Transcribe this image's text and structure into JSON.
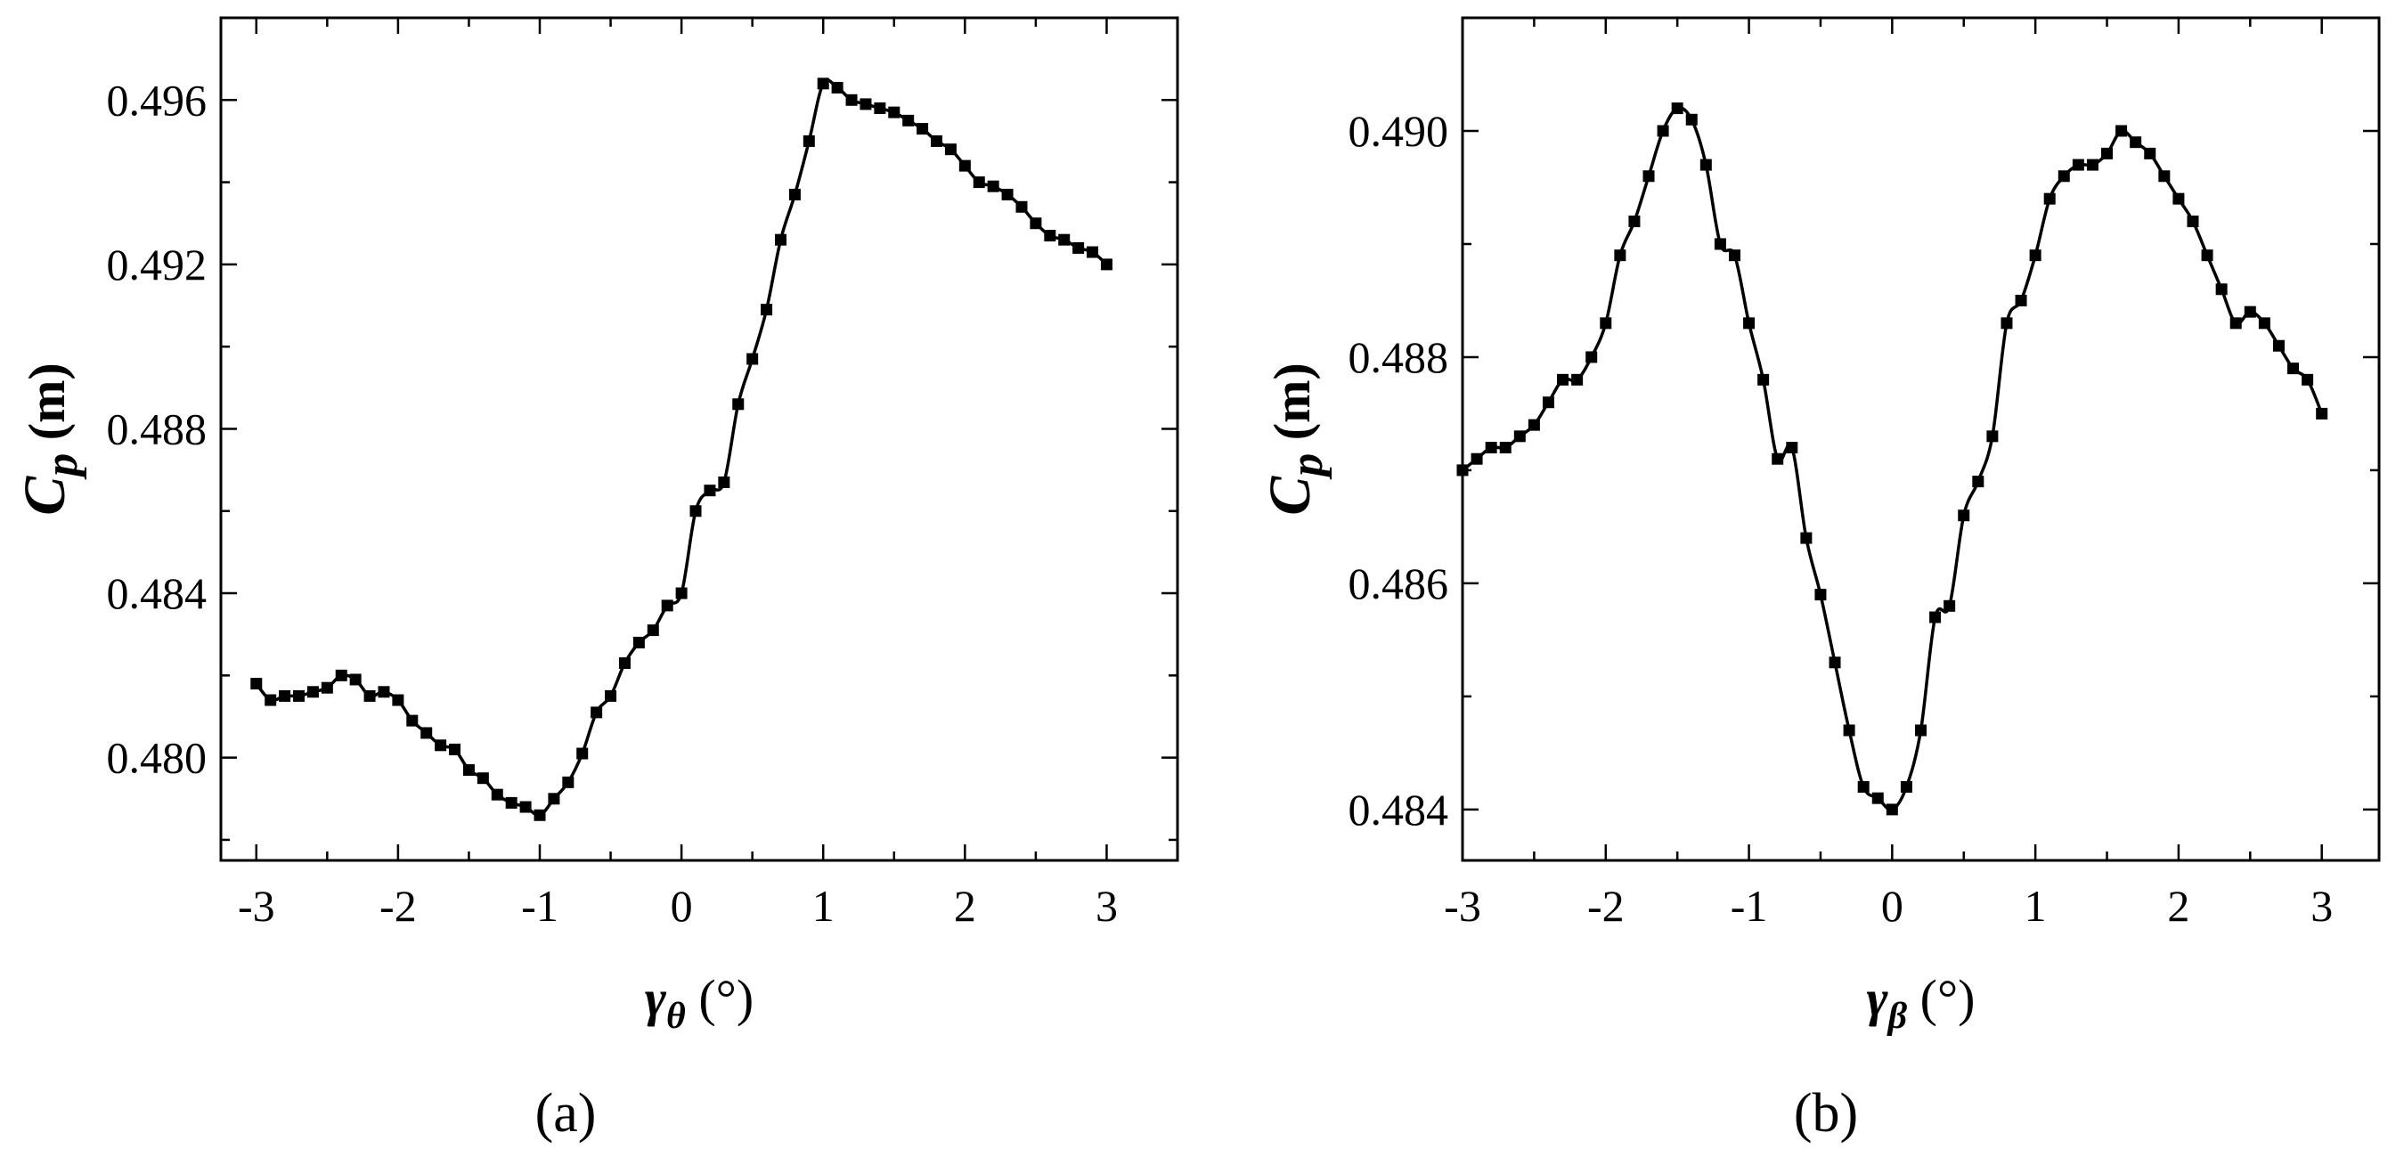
{
  "chart_data": [
    {
      "type": "line",
      "panel_label": "(a)",
      "xlabel": {
        "symbol": "γ",
        "subscript": "θ",
        "unit": " (°)"
      },
      "ylabel": {
        "symbol": "C",
        "subscript": "p",
        "unit": " (m)"
      },
      "xlim": [
        -3.25,
        3.5
      ],
      "ylim": [
        0.4775,
        0.498
      ],
      "xticks": [
        -3,
        -2,
        -1,
        0,
        1,
        2,
        3
      ],
      "xtick_labels": [
        "-3",
        "-2",
        "-1",
        "0",
        "1",
        "2",
        "3"
      ],
      "yticks": [
        0.48,
        0.484,
        0.488,
        0.492,
        0.496
      ],
      "ytick_labels": [
        "0.480",
        "0.484",
        "0.488",
        "0.492",
        "0.496"
      ],
      "grid": false,
      "marker": "square",
      "series": [
        {
          "x": [
            -3.0,
            -2.9,
            -2.8,
            -2.7,
            -2.6,
            -2.5,
            -2.4,
            -2.3,
            -2.2,
            -2.1,
            -2.0,
            -1.9,
            -1.8,
            -1.7,
            -1.6,
            -1.5,
            -1.4,
            -1.3,
            -1.2,
            -1.1,
            -1.0,
            -0.9,
            -0.8,
            -0.7,
            -0.6,
            -0.5,
            -0.4,
            -0.3,
            -0.2,
            -0.1,
            0.0,
            0.1,
            0.2,
            0.3,
            0.4,
            0.5,
            0.6,
            0.7,
            0.8,
            0.9,
            1.0,
            1.1,
            1.2,
            1.3,
            1.4,
            1.5,
            1.6,
            1.7,
            1.8,
            1.9,
            2.0,
            2.1,
            2.2,
            2.3,
            2.4,
            2.5,
            2.6,
            2.7,
            2.8,
            2.9,
            3.0
          ],
          "y": [
            0.4818,
            0.4814,
            0.4815,
            0.4815,
            0.4816,
            0.4817,
            0.482,
            0.4819,
            0.4815,
            0.4816,
            0.4814,
            0.4809,
            0.4806,
            0.4803,
            0.4802,
            0.4797,
            0.4795,
            0.4791,
            0.4789,
            0.4788,
            0.4786,
            0.479,
            0.4794,
            0.4801,
            0.4811,
            0.4815,
            0.4823,
            0.4828,
            0.4831,
            0.4837,
            0.484,
            0.486,
            0.4865,
            0.4867,
            0.4886,
            0.4897,
            0.4909,
            0.4926,
            0.4937,
            0.495,
            0.4964,
            0.4963,
            0.496,
            0.4959,
            0.4958,
            0.4957,
            0.4955,
            0.4953,
            0.495,
            0.4948,
            0.4944,
            0.494,
            0.4939,
            0.4937,
            0.4934,
            0.493,
            0.4927,
            0.4926,
            0.4924,
            0.4923,
            0.492
          ]
        }
      ]
    },
    {
      "type": "line",
      "panel_label": "(b)",
      "xlabel": {
        "symbol": "γ",
        "subscript": "β",
        "unit": " (°)"
      },
      "ylabel": {
        "symbol": "C",
        "subscript": "p",
        "unit": " (m)"
      },
      "xlim": [
        -3.0,
        3.4
      ],
      "ylim": [
        0.48355,
        0.491
      ],
      "xticks": [
        -3,
        -2,
        -1,
        0,
        1,
        2,
        3
      ],
      "xtick_labels": [
        "-3",
        "-2",
        "-1",
        "0",
        "1",
        "2",
        "3"
      ],
      "yticks": [
        0.484,
        0.486,
        0.488,
        0.49
      ],
      "ytick_labels": [
        "0.484",
        "0.486",
        "0.488",
        "0.490"
      ],
      "grid": false,
      "marker": "square",
      "series": [
        {
          "x": [
            -3.0,
            -2.9,
            -2.8,
            -2.7,
            -2.6,
            -2.5,
            -2.4,
            -2.3,
            -2.2,
            -2.1,
            -2.0,
            -1.9,
            -1.8,
            -1.7,
            -1.6,
            -1.5,
            -1.4,
            -1.3,
            -1.2,
            -1.1,
            -1.0,
            -0.9,
            -0.8,
            -0.7,
            -0.6,
            -0.5,
            -0.4,
            -0.3,
            -0.2,
            -0.1,
            0.0,
            0.1,
            0.2,
            0.3,
            0.4,
            0.5,
            0.6,
            0.7,
            0.8,
            0.9,
            1.0,
            1.1,
            1.2,
            1.3,
            1.4,
            1.5,
            1.6,
            1.7,
            1.8,
            1.9,
            2.0,
            2.1,
            2.2,
            2.3,
            2.4,
            2.5,
            2.6,
            2.7,
            2.8,
            2.9,
            3.0
          ],
          "y": [
            0.487,
            0.4871,
            0.4872,
            0.4872,
            0.4873,
            0.4874,
            0.4876,
            0.4878,
            0.4878,
            0.488,
            0.4883,
            0.4889,
            0.4892,
            0.4896,
            0.49,
            0.4902,
            0.4901,
            0.4897,
            0.489,
            0.4889,
            0.4883,
            0.4878,
            0.4871,
            0.4872,
            0.4864,
            0.4859,
            0.4853,
            0.4847,
            0.4842,
            0.4841,
            0.484,
            0.4842,
            0.4847,
            0.4857,
            0.4858,
            0.4866,
            0.4869,
            0.4873,
            0.4883,
            0.4885,
            0.4889,
            0.4894,
            0.4896,
            0.4897,
            0.4897,
            0.4898,
            0.49,
            0.4899,
            0.4898,
            0.4896,
            0.4894,
            0.4892,
            0.4889,
            0.4886,
            0.4883,
            0.4884,
            0.4883,
            0.4881,
            0.4879,
            0.4878,
            0.4875
          ]
        }
      ]
    }
  ]
}
